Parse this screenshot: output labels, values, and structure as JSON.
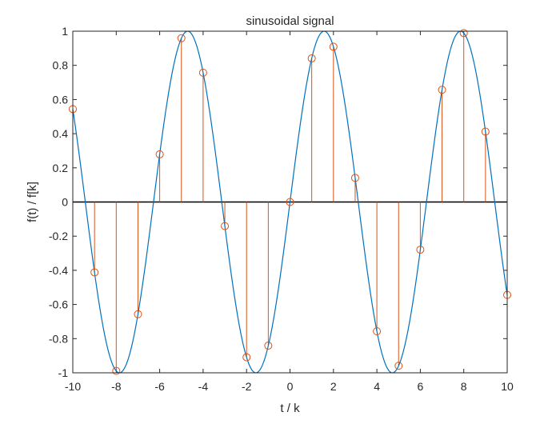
{
  "chart_data": {
    "type": "line",
    "title": "sinusoidal signal",
    "xlabel": "t / k",
    "ylabel": "f(t) / f[k]",
    "xlim": [
      -10,
      10
    ],
    "ylim": [
      -1,
      1
    ],
    "xticks": [
      -10,
      -8,
      -6,
      -4,
      -2,
      0,
      2,
      4,
      6,
      8,
      10
    ],
    "yticks": [
      -1,
      -0.8,
      -0.6,
      -0.4,
      -0.2,
      0,
      0.2,
      0.4,
      0.6,
      0.8,
      1
    ],
    "xtick_labels": [
      "-10",
      "-8",
      "-6",
      "-4",
      "-2",
      "0",
      "2",
      "4",
      "6",
      "8",
      "10"
    ],
    "ytick_labels": [
      "-1",
      "-0.8",
      "-0.6",
      "-0.4",
      "-0.2",
      "0",
      "0.2",
      "0.4",
      "0.6",
      "0.8",
      "1"
    ],
    "grid": false,
    "box": true,
    "continuous": {
      "expression": "sin(t)",
      "x_range": [
        -10,
        10
      ],
      "color": "#0072bd"
    },
    "stem": {
      "color": "#d95319",
      "marker": "circle",
      "k": [
        -10,
        -9,
        -8,
        -7,
        -6,
        -5,
        -4,
        -3,
        -2,
        -1,
        0,
        1,
        2,
        3,
        4,
        5,
        6,
        7,
        8,
        9,
        10
      ],
      "values": [
        0.544,
        -0.412,
        -0.989,
        -0.657,
        0.279,
        0.959,
        0.757,
        -0.141,
        -0.909,
        -0.841,
        0,
        0.841,
        0.909,
        0.141,
        -0.757,
        -0.959,
        -0.279,
        0.657,
        0.989,
        0.412,
        -0.544
      ]
    }
  }
}
